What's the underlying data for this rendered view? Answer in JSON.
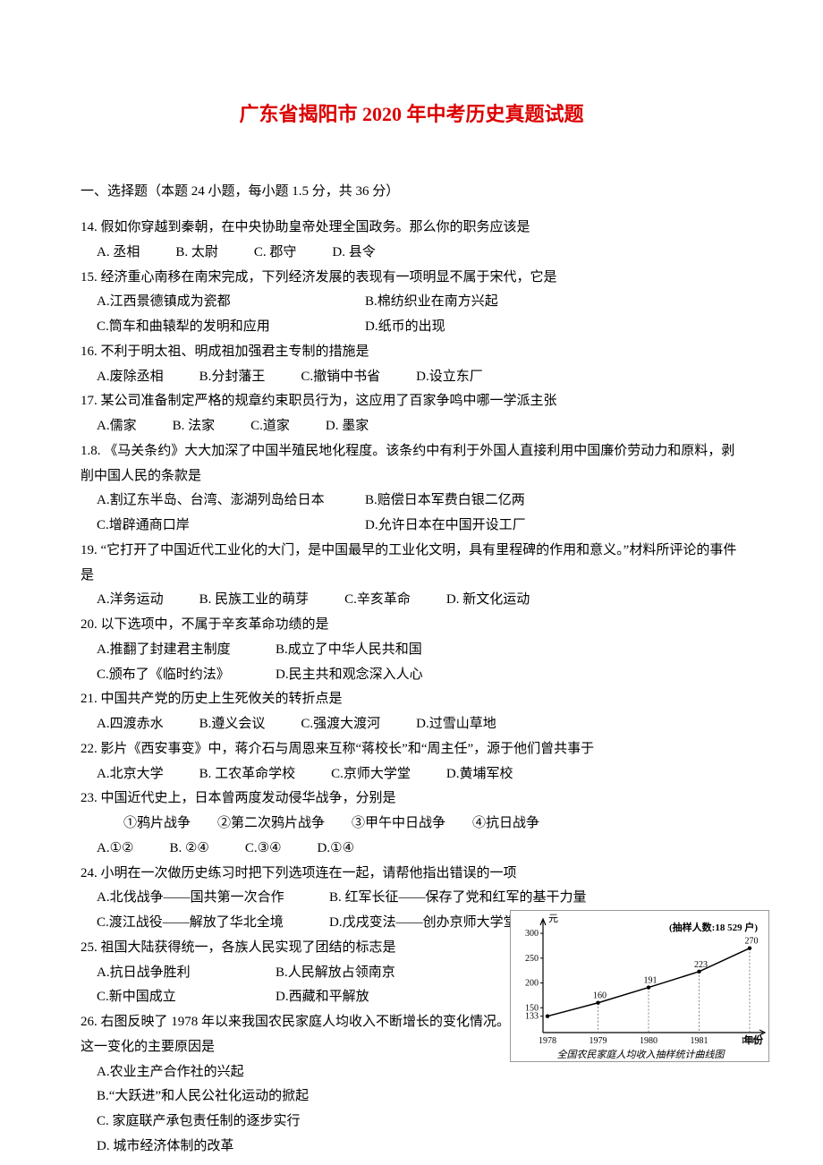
{
  "title": "广东省揭阳市 2020 年中考历史真题试题",
  "section_header": "一、选择题（本题 24 小题，每小题 1.5 分，共 36 分）",
  "questions": [
    {
      "num": "14",
      "text": "假如你穿越到秦朝，在中央协助皇帝处理全国政务。那么你的职务应该是",
      "opts": [
        "A. 丞相",
        "B. 太尉",
        "C. 郡守",
        "D. 县令"
      ],
      "layout": "inline"
    },
    {
      "num": "15",
      "text": "经济重心南移在南宋完成，下列经济发展的表现有一项明显不属于宋代，它是",
      "opts": [
        "A.江西景德镇成为瓷都",
        "B.棉纺织业在南方兴起",
        "C.筒车和曲辕犁的发明和应用",
        "D.纸币的出现"
      ],
      "layout": "two-col"
    },
    {
      "num": "16",
      "text": "不利于明太祖、明成祖加强君主专制的措施是",
      "opts": [
        "A.废除丞相",
        "B.分封藩王",
        "C.撤销中书省",
        "D.设立东厂"
      ],
      "layout": "inline"
    },
    {
      "num": "17",
      "text": "某公司准备制定严格的规章约束职员行为，这应用了百家争鸣中哪一学派主张",
      "opts": [
        "A.儒家",
        "B. 法家",
        "C.道家",
        "D. 墨家"
      ],
      "layout": "inline"
    },
    {
      "num": "18",
      "text": "《马关条约》大大加深了中国半殖民地化程度。该条约中有利于外国人直接利用中国廉价劳动力和原料，剥削中国人民的条款是",
      "prefix": "1.8.",
      "opts": [
        "A.割辽东半岛、台湾、澎湖列岛给日本",
        "B.赔偿日本军费白银二亿两",
        "C.增辟通商口岸",
        "D.允许日本在中国开设工厂"
      ],
      "layout": "two-col"
    },
    {
      "num": "19",
      "text": "“它打开了中国近代工业化的大门，是中国最早的工业化文明，具有里程碑的作用和意义。”材料所评论的事件是",
      "opts": [
        "A.洋务运动",
        "B. 民族工业的萌芽",
        "C.辛亥革命",
        "D. 新文化运动"
      ],
      "layout": "inline"
    },
    {
      "num": "20",
      "text": "以下选项中，不属于辛亥革命功绩的是",
      "opts": [
        "A.推翻了封建君主制度",
        "B.成立了中华人民共和国",
        "C.颁布了《临时约法》",
        "D.民主共和观念深入人心"
      ],
      "layout": "two-short"
    },
    {
      "num": "21",
      "text": "中国共产党的历史上生死攸关的转折点是",
      "opts": [
        "A.四渡赤水",
        "B.遵义会议",
        "C.强渡大渡河",
        "D.过雪山草地"
      ],
      "layout": "inline"
    },
    {
      "num": "22",
      "text": "影片《西安事变》中，蒋介石与周恩来互称“蒋校长”和“周主任”，源于他们曾共事于",
      "opts": [
        "A.北京大学",
        "B. 工农革命学校",
        "C.京师大学堂",
        "D.黄埔军校"
      ],
      "layout": "inline"
    },
    {
      "num": "23",
      "text": "中国近代史上，日本曾两度发动侵华战争，分别是",
      "sub": "①鸦片战争　　②第二次鸦片战争　　③甲午中日战争　　④抗日战争",
      "opts": [
        "A.①②",
        "B. ②④",
        "C.③④",
        "D.①④"
      ],
      "layout": "inline"
    },
    {
      "num": "24",
      "text": "小明在一次做历史练习时把下列选项连在一起，请帮他指出错误的一项",
      "opts": [
        "A.北伐战争——国共第一次合作",
        "B. 红军长征——保存了党和红军的基干力量",
        "C.渡江战役——解放了华北全境",
        "D.戊戌变法——创办京师大学堂"
      ],
      "layout": "two-col-wide"
    },
    {
      "num": "25",
      "text": "祖国大陆获得统一，各族人民实现了团结的标志是",
      "opts": [
        "A.抗日战争胜利",
        "B.人民解放占领南京",
        "C.新中国成立",
        "D.西藏和平解放"
      ],
      "layout": "two-short"
    },
    {
      "num": "26",
      "text": "右图反映了 1978 年以来我国农民家庭人均收入不断增长的变化情况。出现这一变化的主要原因是",
      "opts": [
        "A.农业主产合作社的兴起",
        "B.“大跃进”和人民公社化运动的掀起",
        "C. 家庭联产承包责任制的逐步实行",
        "D. 城市经济体制的改革"
      ],
      "layout": "block"
    }
  ],
  "chart": {
    "type": "line",
    "sample_label": "(抽样人数:18 529 户)",
    "y_unit": "元",
    "x_unit": "年份",
    "caption": "全国农民家庭人均收入抽样统计曲线图",
    "ylim": [
      100,
      320
    ],
    "yticks": [
      133,
      150,
      200,
      250,
      300
    ],
    "ytick_labels": [
      "133",
      "150",
      "200",
      "250",
      "300"
    ],
    "xticks": [
      "1978",
      "1979",
      "1980",
      "1981",
      "1982"
    ],
    "values": [
      133,
      160,
      191,
      223,
      270
    ],
    "value_labels": [
      "",
      "160",
      "191",
      "223",
      "270"
    ],
    "line_color": "#000000",
    "axis_color": "#000000",
    "background_color": "#ffffff",
    "font_size": 10
  }
}
